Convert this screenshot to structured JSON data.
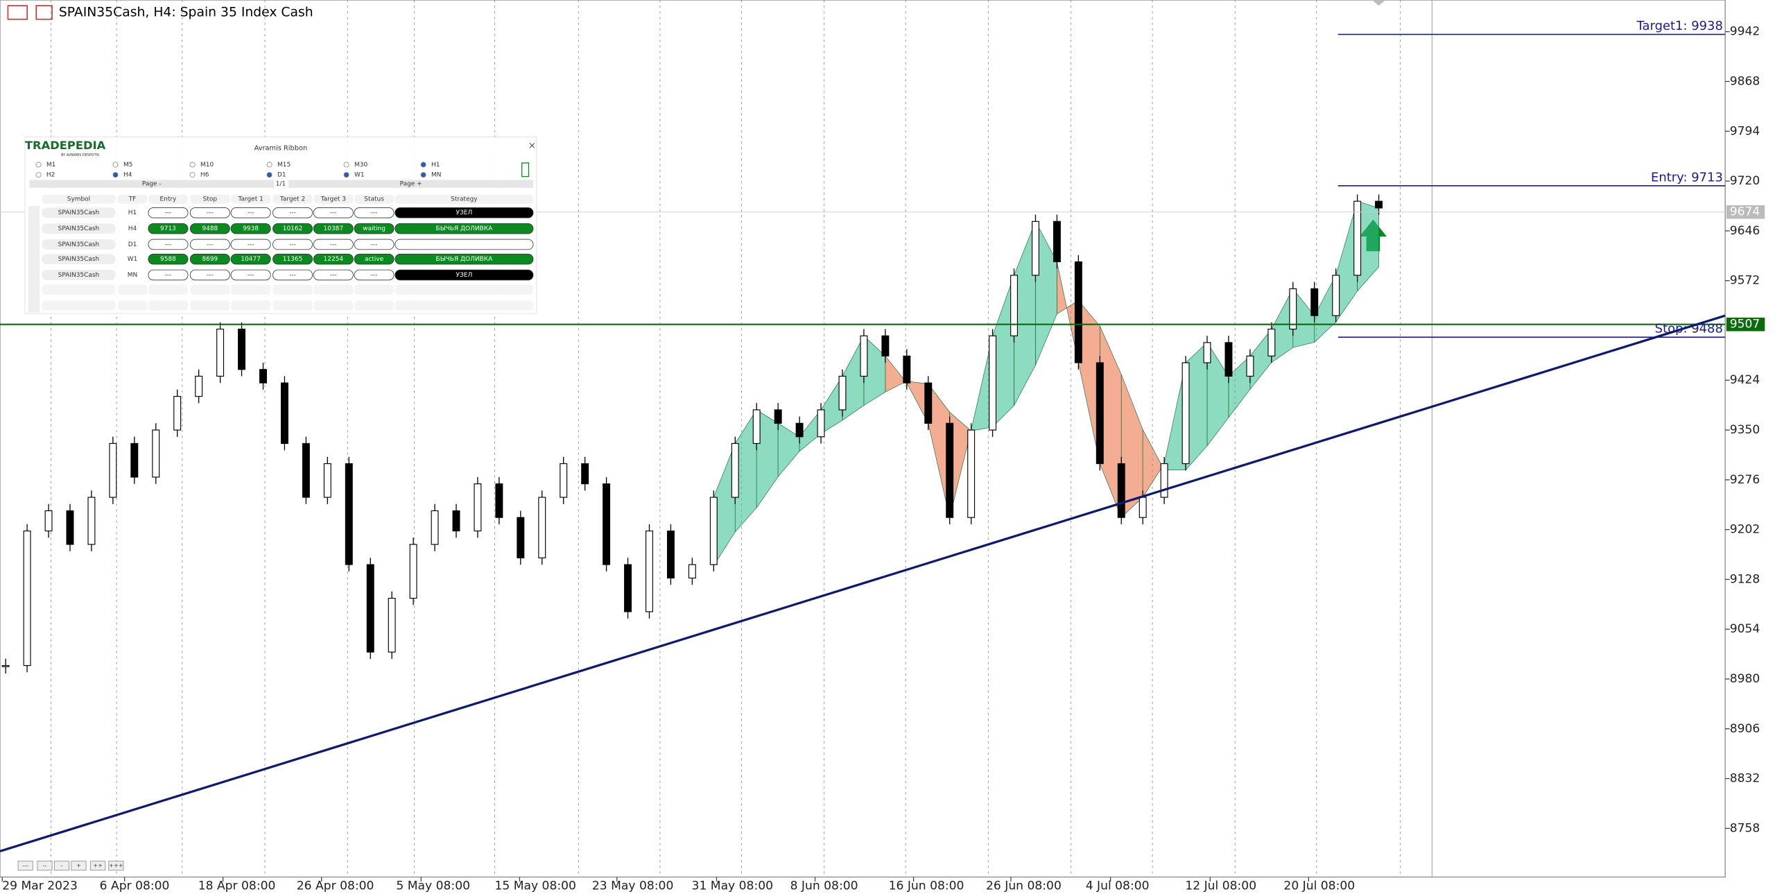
{
  "header": {
    "title": "SPAIN35Cash, H4:  Spain 35 Index Cash"
  },
  "price_axis": {
    "ticks": [
      9942,
      9868,
      9794,
      9720,
      9646,
      9572,
      9424,
      9350,
      9276,
      9202,
      9128,
      9054,
      8980,
      8906,
      8832,
      8758
    ],
    "current_price": 9674
  },
  "time_axis": {
    "labels": [
      "29 Mar 2023",
      "6 Apr 08:00",
      "18 Apr 08:00",
      "26 Apr 08:00",
      "5 May 08:00",
      "15 May 08:00",
      "23 May 08:00",
      "31 May 08:00",
      "8 Jun 08:00",
      "16 Jun 08:00",
      "26 Jun 08:00",
      "4 Jul 08:00",
      "12 Jul 08:00",
      "20 Jul 08:00"
    ]
  },
  "chart": {
    "closes": [
      9000,
      9200,
      9230,
      9180,
      9250,
      9330,
      9280,
      9350,
      9400,
      9430,
      9500,
      9440,
      9420,
      9330,
      9250,
      9300,
      9150,
      9020,
      9100,
      9180,
      9230,
      9200,
      9270,
      9220,
      9160,
      9250,
      9300,
      9270,
      9150,
      9080,
      9200,
      9130,
      9150,
      9250,
      9330,
      9380,
      9360,
      9340,
      9380,
      9430,
      9490,
      9460,
      9420,
      9360,
      9220,
      9350,
      9490,
      9580,
      9660,
      9600,
      9450,
      9300,
      9220,
      9250,
      9300,
      9450,
      9480,
      9430,
      9460,
      9500,
      9560,
      9520,
      9580,
      9690,
      9680
    ],
    "levels": [
      {
        "label": "Target1: 9938",
        "price": 9938
      },
      {
        "label": "Entry: 9713",
        "price": 9713
      },
      {
        "label": "Stop: 9488",
        "price": 9488
      }
    ],
    "support": {
      "label": "9507",
      "price": 9507
    },
    "trendline": {
      "start": 8724,
      "end": 9520
    }
  },
  "panel": {
    "logo": "TRADEPEDIA",
    "logo_sub": "BY AVRAMIS DESPOTIS",
    "title": "Avramis Ribbon",
    "close": "×",
    "timeframes": [
      [
        "M1",
        "M5",
        "M10",
        "M15",
        "M30",
        "H1"
      ],
      [
        "H2",
        "H4",
        "H6",
        "D1",
        "W1",
        "MN"
      ]
    ],
    "checked": [
      [
        false,
        false,
        false,
        false,
        false,
        true
      ],
      [
        false,
        true,
        false,
        true,
        true,
        true
      ]
    ],
    "page_prev": "Page -",
    "page_info": "1/1",
    "page_next": "Page +",
    "headers": [
      "Symbol",
      "TF",
      "Entry",
      "Stop",
      "Target 1",
      "Target 2",
      "Target 3",
      "Status",
      "Strategy"
    ],
    "rows": [
      {
        "symbol": "SPAIN35Cash",
        "tf": "H1",
        "cells": [
          "---",
          "---",
          "---",
          "---",
          "---"
        ],
        "status": "---",
        "strategy": "УЗЕЛ",
        "style": "black"
      },
      {
        "symbol": "SPAIN35Cash",
        "tf": "H4",
        "cells": [
          9713,
          9488,
          9938,
          10162,
          10387
        ],
        "status": "waiting",
        "strategy": "БЫЧЬЯ ДОЛИВКА",
        "style": "green"
      },
      {
        "symbol": "SPAIN35Cash",
        "tf": "D1",
        "cells": [
          "---",
          "---",
          "---",
          "---",
          "---"
        ],
        "status": "---",
        "strategy": "",
        "style": "white"
      },
      {
        "symbol": "SPAIN35Cash",
        "tf": "W1",
        "cells": [
          9588,
          8699,
          10477,
          11365,
          12254
        ],
        "status": "active",
        "strategy": "БЫЧЬЯ ДОЛИВКА",
        "style": "green"
      },
      {
        "symbol": "SPAIN35Cash",
        "tf": "MN",
        "cells": [
          "---",
          "---",
          "---",
          "---",
          "---"
        ],
        "status": "---",
        "strategy": "УЗЕЛ",
        "style": "black"
      }
    ]
  },
  "zoom_buttons": [
    "---",
    "--",
    "-",
    "+",
    "++",
    "+++"
  ]
}
